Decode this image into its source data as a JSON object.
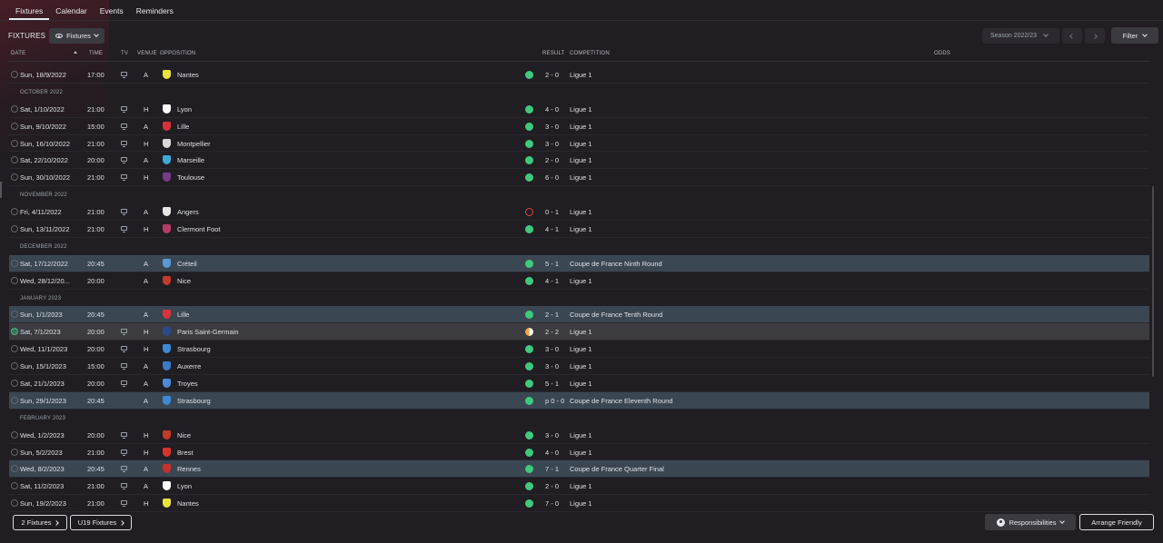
{
  "tabs": [
    {
      "label": "Fixtures",
      "active": true
    },
    {
      "label": "Calendar",
      "active": false
    },
    {
      "label": "Events",
      "active": false
    },
    {
      "label": "Reminders",
      "active": false
    }
  ],
  "header": {
    "title": "FIXTURES",
    "view_dropdown": "Fixtures",
    "season": "Season 2022/23",
    "filter_label": "Filter"
  },
  "columns": {
    "date": "DATE",
    "time": "TIME",
    "tv": "TV",
    "venue": "VENUE",
    "opposition": "OPPOSITION",
    "result": "RESULT",
    "competition": "COMPETITION",
    "odds": "ODDS"
  },
  "colors": {
    "win": "#3fc97d",
    "loss": "#e0473f",
    "draw": "#f0a43a",
    "cup_highlight": "#3a4753",
    "background": "#201d23"
  },
  "rows": [
    {
      "type": "fixture",
      "date": "Sun, 18/9/2022",
      "time": "17:00",
      "tv": true,
      "venue": "A",
      "opposition": "Nantes",
      "crest": "#e8e23a",
      "outcome": "win",
      "result": "2 - 0",
      "competition": "Ligue 1"
    },
    {
      "type": "month",
      "label": "OCTOBER 2022"
    },
    {
      "type": "fixture",
      "date": "Sat, 1/10/2022",
      "time": "21:00",
      "tv": true,
      "venue": "H",
      "opposition": "Lyon",
      "crest": "#ffffff",
      "outcome": "win",
      "result": "4 - 0",
      "competition": "Ligue 1"
    },
    {
      "type": "fixture",
      "date": "Sun, 9/10/2022",
      "time": "15:00",
      "tv": true,
      "venue": "A",
      "opposition": "Lille",
      "crest": "#d9323c",
      "outcome": "win",
      "result": "3 - 0",
      "competition": "Ligue 1"
    },
    {
      "type": "fixture",
      "date": "Sun, 16/10/2022",
      "time": "21:00",
      "tv": true,
      "venue": "H",
      "opposition": "Montpellier",
      "crest": "#d8d8d8",
      "outcome": "win",
      "result": "3 - 0",
      "competition": "Ligue 1"
    },
    {
      "type": "fixture",
      "date": "Sat, 22/10/2022",
      "time": "20:00",
      "tv": true,
      "venue": "A",
      "opposition": "Marseille",
      "crest": "#3aa8d8",
      "outcome": "win",
      "result": "2 - 0",
      "competition": "Ligue 1"
    },
    {
      "type": "fixture",
      "date": "Sun, 30/10/2022",
      "time": "21:00",
      "tv": true,
      "venue": "H",
      "opposition": "Toulouse",
      "crest": "#7a3a8a",
      "outcome": "win",
      "result": "6 - 0",
      "competition": "Ligue 1"
    },
    {
      "type": "month",
      "label": "NOVEMBER 2022"
    },
    {
      "type": "fixture",
      "date": "Fri, 4/11/2022",
      "time": "21:00",
      "tv": true,
      "venue": "A",
      "opposition": "Angers",
      "crest": "#e6e6e6",
      "outcome": "loss",
      "result": "0 - 1",
      "competition": "Ligue 1"
    },
    {
      "type": "fixture",
      "date": "Sun, 13/11/2022",
      "time": "21:00",
      "tv": true,
      "venue": "H",
      "opposition": "Clermont Foot",
      "crest": "#b83a6a",
      "outcome": "win",
      "result": "4 - 1",
      "competition": "Ligue 1"
    },
    {
      "type": "month",
      "label": "DECEMBER 2022"
    },
    {
      "type": "fixture",
      "highlight": "cup",
      "date": "Sat, 17/12/2022",
      "time": "20:45",
      "tv": false,
      "venue": "A",
      "opposition": "Créteil",
      "crest": "#5a9ad6",
      "outcome": "win",
      "result": "5 - 1",
      "competition": "Coupe de France Ninth Round"
    },
    {
      "type": "fixture",
      "date": "Wed, 28/12/20...",
      "time": "20:00",
      "tv": false,
      "venue": "A",
      "opposition": "Nice",
      "crest": "#c23a2a",
      "outcome": "win",
      "result": "4 - 1",
      "competition": "Ligue 1"
    },
    {
      "type": "month",
      "label": "JANUARY 2023"
    },
    {
      "type": "fixture",
      "highlight": "cup",
      "date": "Sun, 1/1/2023",
      "time": "20:45",
      "tv": false,
      "venue": "A",
      "opposition": "Lille",
      "crest": "#d9323c",
      "outcome": "win",
      "result": "2 - 1",
      "competition": "Coupe de France Tenth Round"
    },
    {
      "type": "fixture",
      "highlight": "grey",
      "done": true,
      "date": "Sat, 7/1/2023",
      "time": "20:00",
      "tv": true,
      "venue": "H",
      "opposition": "Paris Saint-Germain",
      "crest": "#2a4a8a",
      "outcome": "draw",
      "result": "2 - 2",
      "competition": "Ligue 1"
    },
    {
      "type": "fixture",
      "date": "Wed, 11/1/2023",
      "time": "20:00",
      "tv": true,
      "venue": "H",
      "opposition": "Strasbourg",
      "crest": "#3a8ad6",
      "outcome": "win",
      "result": "3 - 0",
      "competition": "Ligue 1"
    },
    {
      "type": "fixture",
      "date": "Sun, 15/1/2023",
      "time": "15:00",
      "tv": true,
      "venue": "A",
      "opposition": "Auxerre",
      "crest": "#3a7ac6",
      "outcome": "win",
      "result": "3 - 0",
      "competition": "Ligue 1"
    },
    {
      "type": "fixture",
      "date": "Sat, 21/1/2023",
      "time": "20:00",
      "tv": true,
      "venue": "A",
      "opposition": "Troyes",
      "crest": "#4a8ad6",
      "outcome": "win",
      "result": "5 - 1",
      "competition": "Ligue 1"
    },
    {
      "type": "fixture",
      "highlight": "cup",
      "date": "Sun, 29/1/2023",
      "time": "20:45",
      "tv": false,
      "venue": "A",
      "opposition": "Strasbourg",
      "crest": "#3a8ad6",
      "outcome": "win",
      "result": "p 0 - 0",
      "competition": "Coupe de France Eleventh Round"
    },
    {
      "type": "month",
      "label": "FEBRUARY 2023"
    },
    {
      "type": "fixture",
      "date": "Wed, 1/2/2023",
      "time": "20:00",
      "tv": true,
      "venue": "H",
      "opposition": "Nice",
      "crest": "#c23a2a",
      "outcome": "win",
      "result": "3 - 0",
      "competition": "Ligue 1"
    },
    {
      "type": "fixture",
      "date": "Sun, 5/2/2023",
      "time": "21:00",
      "tv": true,
      "venue": "H",
      "opposition": "Brest",
      "crest": "#d8342c",
      "outcome": "win",
      "result": "4 - 0",
      "competition": "Ligue 1"
    },
    {
      "type": "fixture",
      "highlight": "cup",
      "date": "Wed, 8/2/2023",
      "time": "20:45",
      "tv": true,
      "venue": "A",
      "opposition": "Rennes",
      "crest": "#c8302a",
      "outcome": "win",
      "result": "7 - 1",
      "competition": "Coupe de France Quarter Final"
    },
    {
      "type": "fixture",
      "date": "Sat, 11/2/2023",
      "time": "21:00",
      "tv": true,
      "venue": "A",
      "opposition": "Lyon",
      "crest": "#ffffff",
      "outcome": "win",
      "result": "2 - 0",
      "competition": "Ligue 1"
    },
    {
      "type": "fixture",
      "date": "Sun, 19/2/2023",
      "time": "21:00",
      "tv": true,
      "venue": "H",
      "opposition": "Nantes",
      "crest": "#e8e23a",
      "outcome": "win",
      "result": "7 - 0",
      "competition": "Ligue 1"
    }
  ],
  "footer": {
    "fixtures_button": "2 Fixtures",
    "u19_button": "U19 Fixtures",
    "responsibilities": "Responsibilities",
    "arrange_friendly": "Arrange Friendly"
  }
}
